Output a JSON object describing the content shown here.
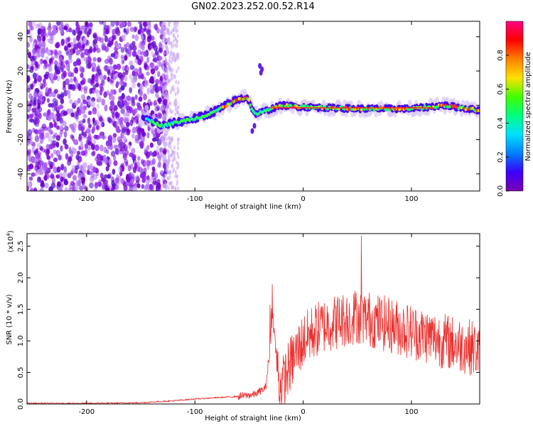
{
  "title": "GN02.2023.252.00.52.R14",
  "colors": {
    "snr_line": "#e8302e",
    "background": "#ffffff",
    "axes": "#000000",
    "colorbar_stops": [
      "#7a00b0",
      "#3b00ff",
      "#0080ff",
      "#00e0ff",
      "#00ff80",
      "#40ff00",
      "#ffe000",
      "#ff8000",
      "#ff0000",
      "#ff0080"
    ]
  },
  "chart_data": [
    {
      "type": "heatmap",
      "title": "",
      "xlabel": "Height of straight line (km)",
      "ylabel": "Frequency (Hz)",
      "xlim": [
        -255,
        163
      ],
      "ylim": [
        -50,
        49
      ],
      "xticks": [
        -200,
        -100,
        0,
        100
      ],
      "yticks": [
        -40,
        -20,
        0,
        20,
        40
      ],
      "colorbar": {
        "label": "Normalized spectral amplitude",
        "range": [
          0.0,
          1.0
        ],
        "ticks": [
          "0.0",
          "0.2",
          "0.4",
          "0.6",
          "0.8"
        ]
      },
      "ridge": [
        {
          "x": -145,
          "f": -8
        },
        {
          "x": -130,
          "f": -12
        },
        {
          "x": -110,
          "f": -9
        },
        {
          "x": -95,
          "f": -7
        },
        {
          "x": -80,
          "f": -3
        },
        {
          "x": -65,
          "f": 2
        },
        {
          "x": -52,
          "f": 5
        },
        {
          "x": -45,
          "f": -5
        },
        {
          "x": -38,
          "f": -4
        },
        {
          "x": -20,
          "f": 0
        },
        {
          "x": 0,
          "f": -1
        },
        {
          "x": 50,
          "f": -2
        },
        {
          "x": 100,
          "f": -2
        },
        {
          "x": 130,
          "f": 0
        },
        {
          "x": 163,
          "f": -3
        }
      ]
    },
    {
      "type": "line",
      "title": "",
      "xlabel": "Height of straight line (km)",
      "ylabel": "SNR (10 * v/v)",
      "y_multiplier": "(x10",
      "y_multiplier_exp": "4",
      "xlim": [
        -255,
        163
      ],
      "ylim": [
        0.0,
        2.7
      ],
      "xticks": [
        -200,
        -100,
        0,
        100
      ],
      "yticks": [
        "0.0",
        "0.5",
        "1.0",
        "1.5",
        "2.0",
        "2.5"
      ],
      "series": [
        {
          "x": [
            -255,
            -200,
            -150,
            -120,
            -100,
            -80,
            -60,
            -45,
            -35,
            -30,
            -28,
            -25,
            -22,
            -18,
            -15,
            -10,
            -5,
            0,
            10,
            20,
            30,
            40,
            50,
            60,
            70,
            80,
            90,
            100,
            120,
            140,
            155,
            160,
            163
          ],
          "values": [
            0.01,
            0.01,
            0.02,
            0.05,
            0.08,
            0.1,
            0.12,
            0.15,
            0.25,
            0.9,
            1.4,
            0.8,
            0.3,
            0.35,
            0.5,
            0.7,
            0.85,
            1.0,
            1.15,
            1.25,
            1.3,
            1.35,
            1.4,
            1.35,
            1.3,
            1.25,
            1.2,
            1.15,
            1.05,
            0.95,
            0.9,
            0.85,
            0.8
          ]
        }
      ]
    }
  ]
}
